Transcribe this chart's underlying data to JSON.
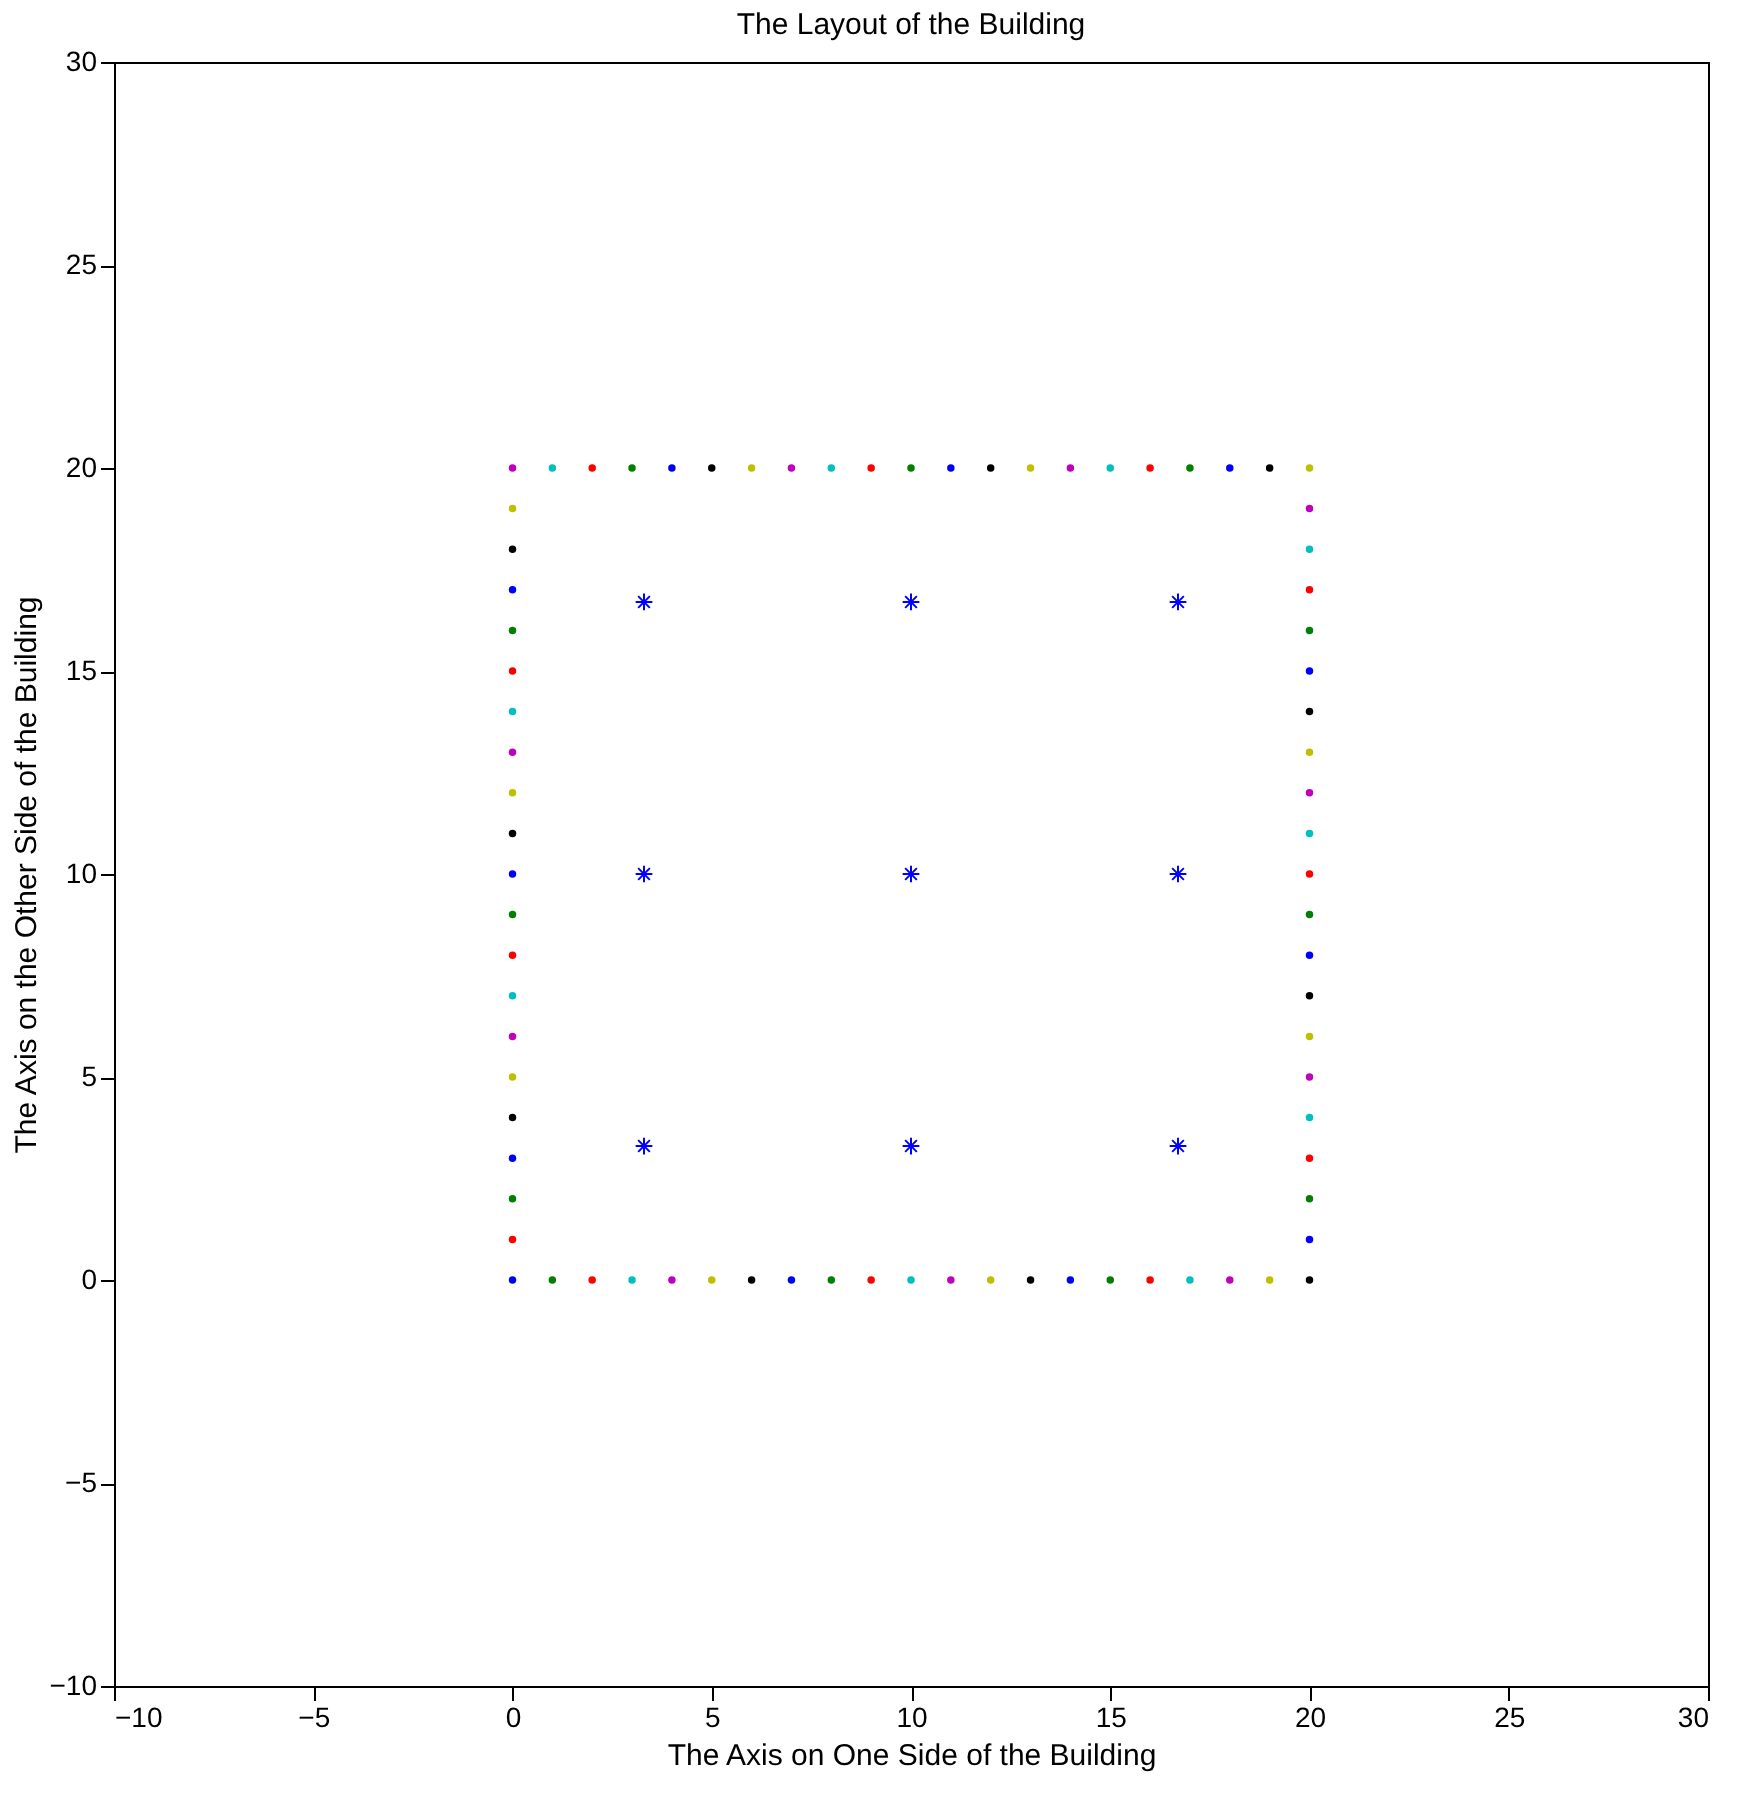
{
  "chart_data": {
    "type": "scatter",
    "title": "The Layout of the Building",
    "xlabel": "The Axis on One Side of the Building",
    "ylabel": "The Axis on the Other Side of the Building",
    "xlim": [
      -10,
      30
    ],
    "ylim": [
      -10,
      30
    ],
    "xticks": [
      -10,
      -5,
      0,
      5,
      10,
      15,
      20,
      25,
      30
    ],
    "yticks": [
      -10,
      -5,
      0,
      5,
      10,
      15,
      20,
      25,
      30
    ],
    "grid": false,
    "series": [
      {
        "marker": "circle",
        "x": [
          0,
          1,
          2,
          3,
          4,
          5,
          6,
          7,
          8,
          9,
          10,
          11,
          12,
          13,
          14,
          15,
          16,
          17,
          18,
          19,
          20,
          20,
          20,
          20,
          20,
          20,
          20,
          20,
          20,
          20,
          20,
          20,
          20,
          20,
          20,
          20,
          20,
          20,
          20,
          20,
          20,
          19,
          18,
          17,
          16,
          15,
          14,
          13,
          12,
          11,
          10,
          9,
          8,
          7,
          6,
          5,
          4,
          3,
          2,
          1,
          0,
          0,
          0,
          0,
          0,
          0,
          0,
          0,
          0,
          0,
          0,
          0,
          0,
          0,
          0,
          0,
          0,
          0,
          0,
          0
        ],
        "values": [
          0,
          0,
          0,
          0,
          0,
          0,
          0,
          0,
          0,
          0,
          0,
          0,
          0,
          0,
          0,
          0,
          0,
          0,
          0,
          0,
          0,
          1,
          2,
          3,
          4,
          5,
          6,
          7,
          8,
          9,
          10,
          11,
          12,
          13,
          14,
          15,
          16,
          17,
          18,
          19,
          20,
          20,
          20,
          20,
          20,
          20,
          20,
          20,
          20,
          20,
          20,
          20,
          20,
          20,
          20,
          20,
          20,
          20,
          20,
          20,
          20,
          19,
          18,
          17,
          16,
          15,
          14,
          13,
          12,
          11,
          10,
          9,
          8,
          7,
          6,
          5,
          4,
          3,
          2,
          1
        ],
        "colors": [
          "#0000ff",
          "#008000",
          "#ff0000",
          "#00bfbf",
          "#bf00bf",
          "#bfbf00",
          "#000000",
          "#0000ff",
          "#008000",
          "#ff0000",
          "#00bfbf",
          "#bf00bf",
          "#bfbf00",
          "#000000",
          "#0000ff",
          "#008000",
          "#ff0000",
          "#00bfbf",
          "#bf00bf",
          "#bfbf00",
          "#000000",
          "#0000ff",
          "#008000",
          "#ff0000",
          "#00bfbf",
          "#bf00bf",
          "#bfbf00",
          "#000000",
          "#0000ff",
          "#008000",
          "#ff0000",
          "#00bfbf",
          "#bf00bf",
          "#bfbf00",
          "#000000",
          "#0000ff",
          "#008000",
          "#ff0000",
          "#00bfbf",
          "#bf00bf",
          "#bfbf00",
          "#000000",
          "#0000ff",
          "#008000",
          "#ff0000",
          "#00bfbf",
          "#bf00bf",
          "#bfbf00",
          "#000000",
          "#0000ff",
          "#008000",
          "#ff0000",
          "#00bfbf",
          "#bf00bf",
          "#bfbf00",
          "#000000",
          "#0000ff",
          "#008000",
          "#ff0000",
          "#00bfbf",
          "#bf00bf",
          "#bfbf00",
          "#000000",
          "#0000ff",
          "#008000",
          "#ff0000",
          "#00bfbf",
          "#bf00bf",
          "#bfbf00",
          "#000000",
          "#0000ff",
          "#008000",
          "#ff0000",
          "#00bfbf",
          "#bf00bf",
          "#bfbf00",
          "#000000",
          "#0000ff",
          "#008000",
          "#ff0000"
        ]
      },
      {
        "marker": "cross",
        "color": "#0000ff",
        "x": [
          3.3,
          10,
          16.7,
          3.3,
          10,
          16.7,
          3.3,
          10,
          16.7
        ],
        "values": [
          3.3,
          3.3,
          3.3,
          10,
          10,
          10,
          16.7,
          16.7,
          16.7
        ]
      }
    ]
  }
}
